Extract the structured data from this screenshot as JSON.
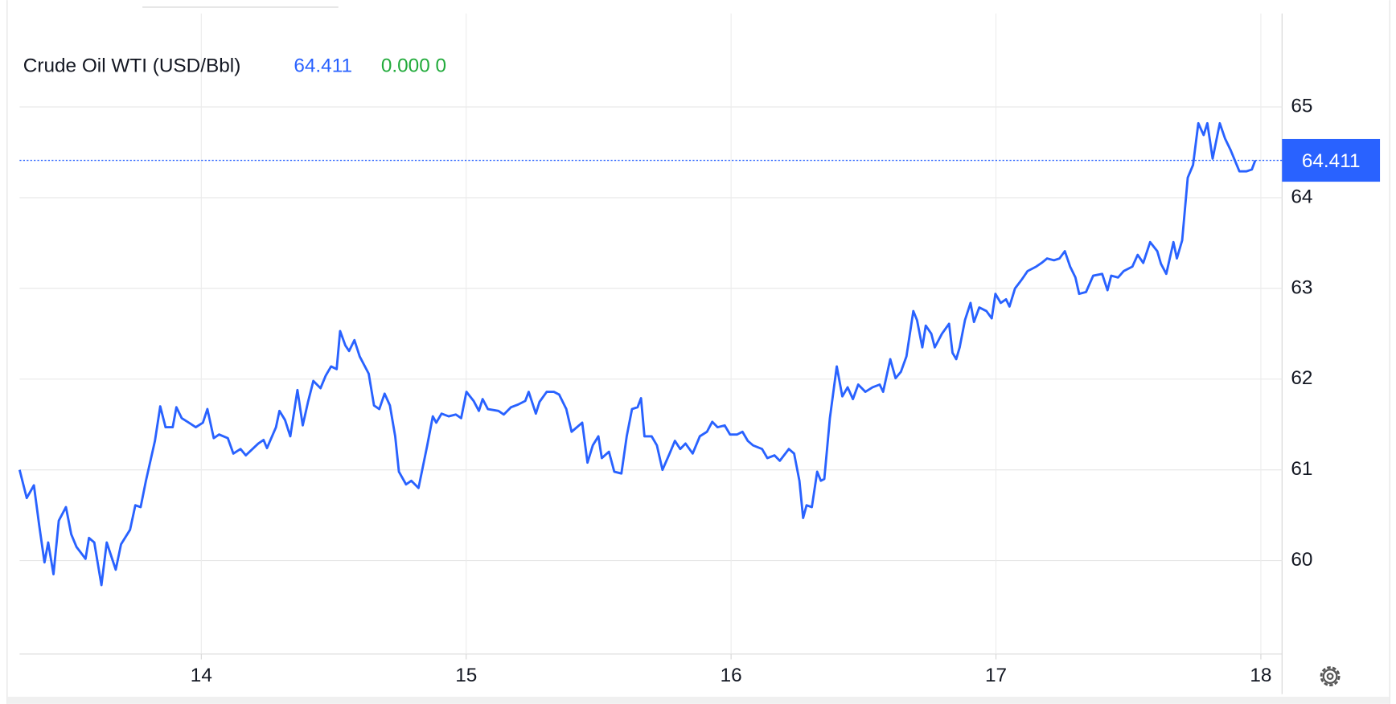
{
  "chart_data": {
    "type": "line",
    "title": "Crude Oil WTI (USD/Bbl)",
    "change_label": "0.000 0",
    "xlim": [
      13.314,
      18.08
    ],
    "ylim": [
      58.97,
      66.03
    ],
    "xticks": [
      14,
      15,
      16,
      17,
      18
    ],
    "yticks": [
      60,
      61,
      62,
      63,
      64,
      65
    ],
    "grid": true,
    "series": [
      {
        "name": "Crude Oil WTI",
        "color": "#2962ff",
        "x": [
          13.314,
          13.341,
          13.368,
          13.388,
          13.408,
          13.422,
          13.442,
          13.462,
          13.489,
          13.509,
          13.529,
          13.563,
          13.576,
          13.596,
          13.623,
          13.643,
          13.677,
          13.697,
          13.731,
          13.751,
          13.771,
          13.791,
          13.825,
          13.845,
          13.865,
          13.892,
          13.906,
          13.926,
          13.953,
          13.979,
          14.006,
          14.023,
          14.047,
          14.067,
          14.1,
          14.121,
          14.148,
          14.168,
          14.215,
          14.235,
          14.248,
          14.282,
          14.295,
          14.316,
          14.336,
          14.363,
          14.383,
          14.403,
          14.423,
          14.45,
          14.47,
          14.49,
          14.511,
          14.524,
          14.544,
          14.558,
          14.578,
          14.598,
          14.632,
          14.652,
          14.672,
          14.692,
          14.712,
          14.732,
          14.746,
          14.773,
          14.793,
          14.82,
          14.853,
          14.874,
          14.887,
          14.907,
          14.934,
          14.961,
          14.981,
          15.001,
          15.028,
          15.048,
          15.062,
          15.082,
          15.122,
          15.142,
          15.169,
          15.196,
          15.223,
          15.236,
          15.263,
          15.277,
          15.304,
          15.331,
          15.351,
          15.378,
          15.398,
          15.418,
          15.438,
          15.458,
          15.478,
          15.499,
          15.512,
          15.539,
          15.559,
          15.586,
          15.606,
          15.626,
          15.647,
          15.66,
          15.673,
          15.7,
          15.72,
          15.741,
          15.768,
          15.788,
          15.808,
          15.828,
          15.855,
          15.882,
          15.909,
          15.929,
          15.949,
          15.976,
          15.996,
          16.023,
          16.043,
          16.063,
          16.083,
          16.117,
          16.137,
          16.164,
          16.184,
          16.218,
          16.238,
          16.258,
          16.272,
          16.285,
          16.305,
          16.325,
          16.339,
          16.352,
          16.373,
          16.399,
          16.42,
          16.44,
          16.46,
          16.48,
          16.507,
          16.534,
          16.561,
          16.574,
          16.601,
          16.621,
          16.641,
          16.662,
          16.688,
          16.702,
          16.722,
          16.735,
          16.756,
          16.769,
          16.796,
          16.823,
          16.836,
          16.85,
          16.863,
          16.883,
          16.904,
          16.917,
          16.937,
          16.964,
          16.984,
          16.998,
          17.018,
          17.038,
          17.051,
          17.072,
          17.098,
          17.119,
          17.152,
          17.172,
          17.193,
          17.219,
          17.24,
          17.26,
          17.28,
          17.3,
          17.314,
          17.34,
          17.367,
          17.401,
          17.421,
          17.435,
          17.461,
          17.482,
          17.515,
          17.535,
          17.556,
          17.582,
          17.609,
          17.623,
          17.643,
          17.67,
          17.683,
          17.703,
          17.724,
          17.744,
          17.764,
          17.784,
          17.798,
          17.818,
          17.845,
          17.865,
          17.885,
          17.919,
          17.945,
          17.966,
          17.979
        ],
        "values": [
          61.0,
          60.69,
          60.83,
          60.39,
          59.98,
          60.2,
          59.85,
          60.44,
          60.59,
          60.29,
          60.15,
          60.02,
          60.25,
          60.2,
          59.73,
          60.2,
          59.9,
          60.18,
          60.34,
          60.61,
          60.59,
          60.88,
          61.32,
          61.7,
          61.47,
          61.47,
          61.69,
          61.57,
          61.52,
          61.47,
          61.52,
          61.67,
          61.35,
          61.39,
          61.35,
          61.18,
          61.23,
          61.16,
          61.29,
          61.33,
          61.24,
          61.47,
          61.65,
          61.55,
          61.37,
          61.88,
          61.49,
          61.75,
          61.98,
          61.9,
          62.04,
          62.14,
          62.11,
          62.53,
          62.37,
          62.31,
          62.43,
          62.25,
          62.06,
          61.71,
          61.67,
          61.84,
          61.71,
          61.37,
          60.98,
          60.84,
          60.88,
          60.8,
          61.27,
          61.59,
          61.52,
          61.62,
          61.59,
          61.61,
          61.57,
          61.86,
          61.76,
          61.65,
          61.78,
          61.67,
          61.65,
          61.61,
          61.69,
          61.72,
          61.76,
          61.86,
          61.62,
          61.75,
          61.86,
          61.86,
          61.83,
          61.67,
          61.42,
          61.47,
          61.52,
          61.08,
          61.27,
          61.37,
          61.13,
          61.2,
          60.98,
          60.96,
          61.37,
          61.67,
          61.69,
          61.79,
          61.37,
          61.37,
          61.27,
          61.0,
          61.18,
          61.32,
          61.23,
          61.29,
          61.18,
          61.37,
          61.42,
          61.53,
          61.47,
          61.49,
          61.39,
          61.39,
          61.42,
          61.32,
          61.27,
          61.23,
          61.13,
          61.16,
          61.1,
          61.23,
          61.18,
          60.88,
          60.47,
          60.61,
          60.59,
          60.98,
          60.88,
          60.9,
          61.57,
          62.14,
          61.81,
          61.91,
          61.78,
          61.94,
          61.86,
          61.91,
          61.94,
          61.86,
          62.22,
          62.01,
          62.08,
          62.25,
          62.75,
          62.65,
          62.35,
          62.59,
          62.5,
          62.35,
          62.5,
          62.61,
          62.29,
          62.22,
          62.35,
          62.65,
          62.84,
          62.63,
          62.79,
          62.75,
          62.67,
          62.94,
          62.84,
          62.88,
          62.8,
          63.0,
          63.1,
          63.19,
          63.24,
          63.28,
          63.33,
          63.31,
          63.33,
          63.41,
          63.24,
          63.12,
          62.94,
          62.96,
          63.14,
          63.16,
          62.98,
          63.14,
          63.12,
          63.19,
          63.24,
          63.37,
          63.28,
          63.51,
          63.41,
          63.27,
          63.16,
          63.51,
          63.33,
          63.53,
          64.22,
          64.36,
          64.82,
          64.69,
          64.82,
          64.43,
          64.82,
          64.65,
          64.53,
          64.29,
          64.29,
          64.31,
          64.411
        ]
      }
    ]
  }
}
